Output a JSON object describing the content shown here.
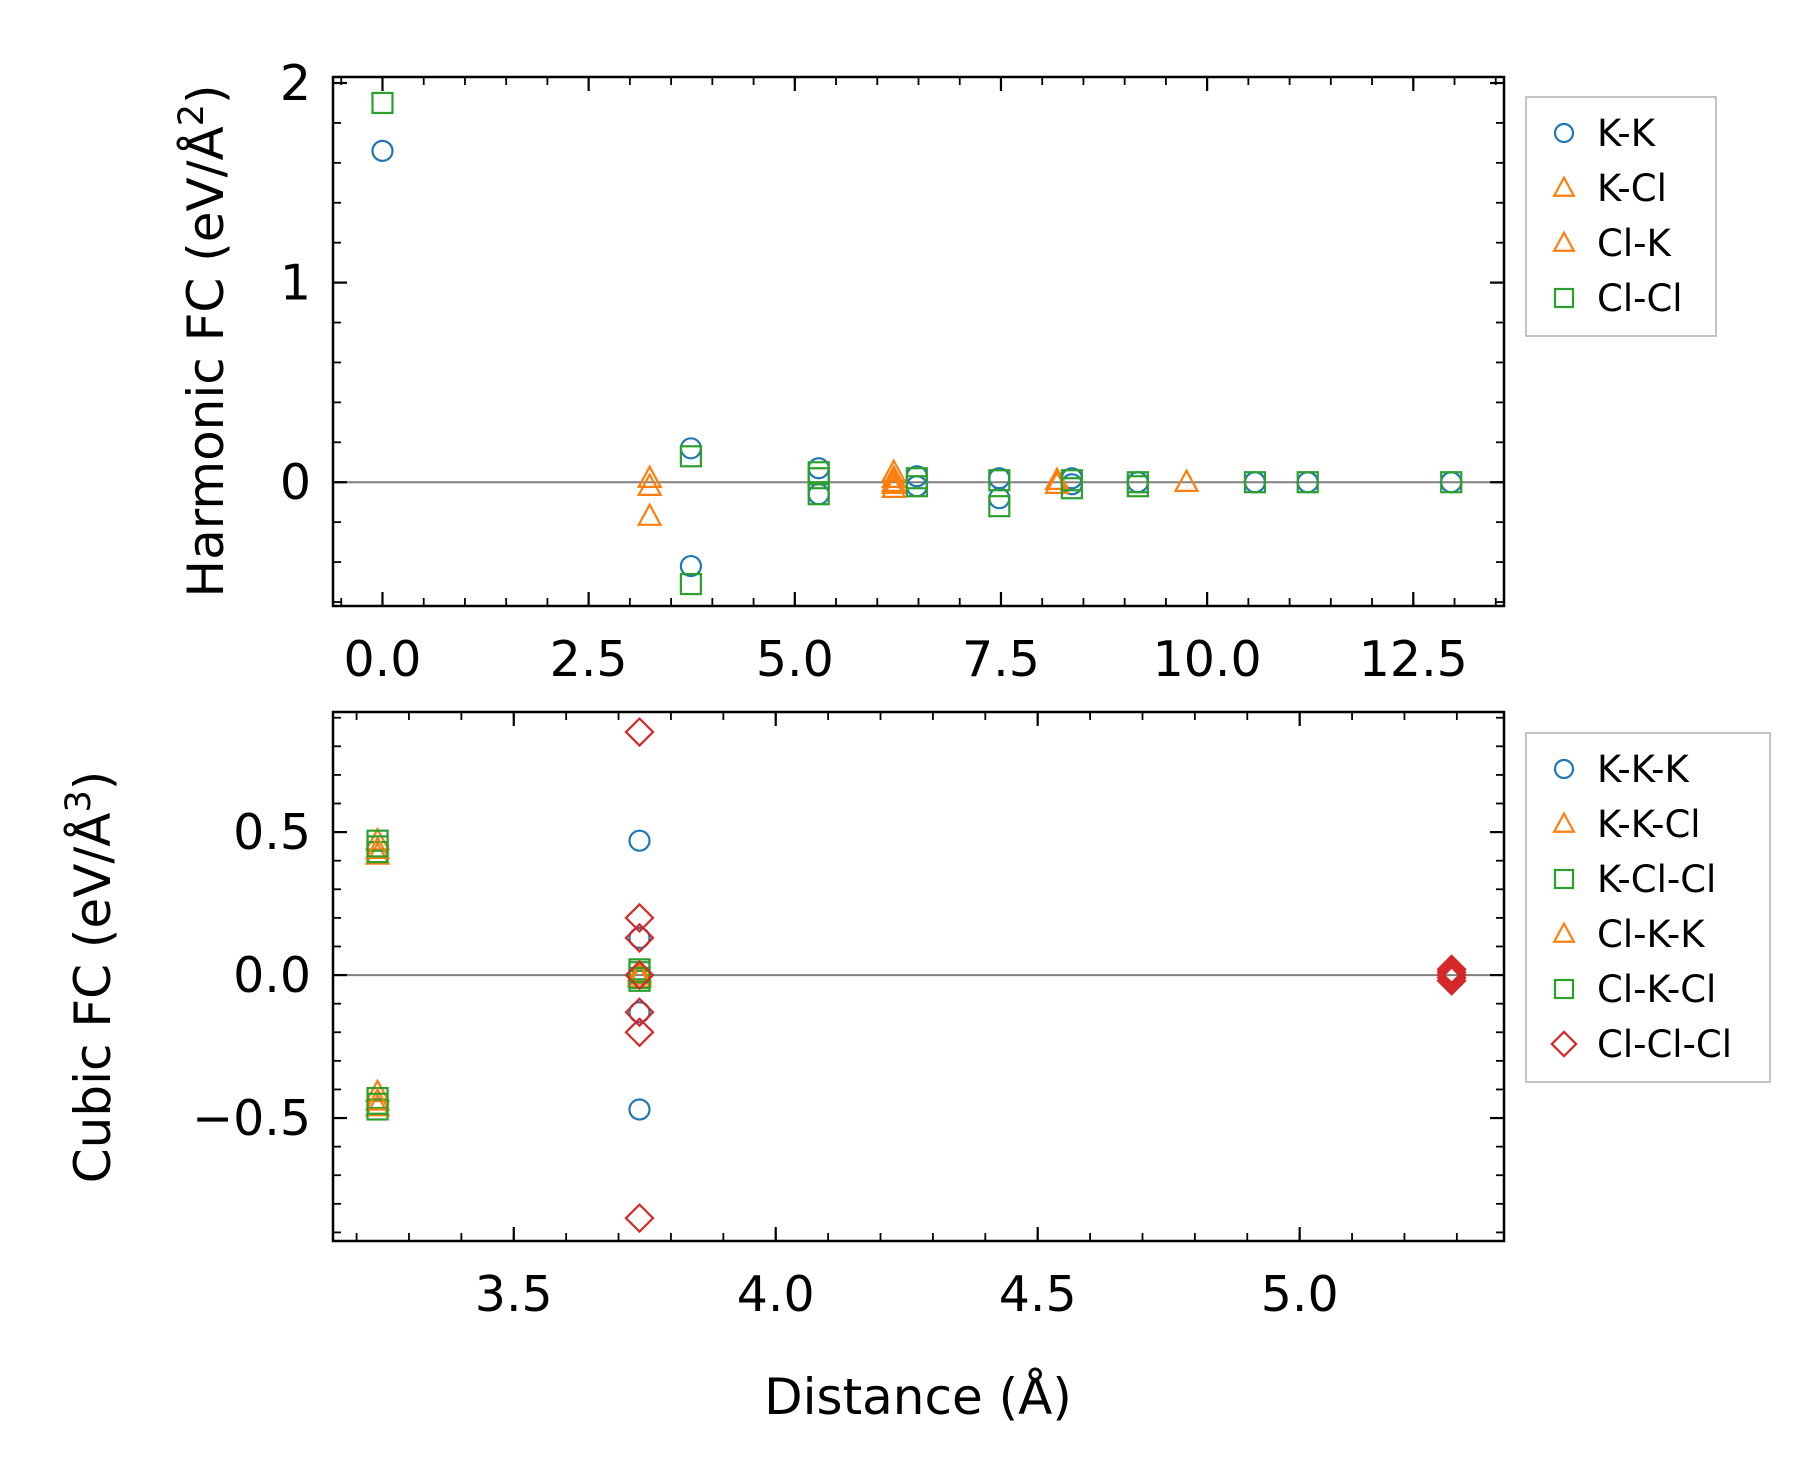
{
  "colors": {
    "blue": "#1f77b4",
    "orange": "#ff7f0e",
    "green": "#2ca02c",
    "red": "#d62728",
    "zero_line": "#808080"
  },
  "xlabel": "Distance (Å)",
  "chart_data": [
    {
      "type": "scatter",
      "ylabel_main": "Harmonic FC (eV/Å",
      "ylabel_sup": "2",
      "ylabel_close": ")",
      "xlim": [
        -0.6,
        13.6
      ],
      "ylim": [
        -0.62,
        2.03
      ],
      "xticks": [
        0,
        2.5,
        5,
        7.5,
        10,
        12.5
      ],
      "xtick_labels": [
        "0.0",
        "2.5",
        "5.0",
        "7.5",
        "10.0",
        "12.5"
      ],
      "yticks": [
        0,
        1,
        2
      ],
      "ytick_labels": [
        "0",
        "1",
        "2"
      ],
      "zero_line": 0,
      "series": [
        {
          "name": "K-K",
          "marker": "circle",
          "color": "#1f77b4",
          "x": [
            0,
            3.74,
            3.74,
            5.29,
            5.29,
            6.48,
            6.48,
            7.48,
            7.48,
            8.36,
            8.36,
            9.16,
            10.58,
            11.22,
            12.96
          ],
          "y": [
            1.66,
            0.17,
            -0.42,
            0.07,
            -0.06,
            0.03,
            -0.02,
            0.02,
            -0.08,
            0.02,
            -0.01,
            0.0,
            0.0,
            0.0,
            0.0
          ]
        },
        {
          "name": "K-Cl",
          "marker": "triangle",
          "color": "#ff7f0e",
          "x": [
            3.24,
            3.24,
            6.2,
            6.2,
            8.18,
            9.75
          ],
          "y": [
            0.02,
            -0.02,
            0.05,
            -0.03,
            0.01,
            0.0
          ]
        },
        {
          "name": "Cl-K",
          "marker": "triangle",
          "color": "#ff7f0e",
          "x": [
            3.24,
            6.2,
            6.2,
            6.2,
            8.18
          ],
          "y": [
            -0.17,
            0.02,
            -0.01,
            0.0,
            -0.01
          ]
        },
        {
          "name": "Cl-Cl",
          "marker": "square",
          "color": "#2ca02c",
          "x": [
            0,
            3.74,
            3.74,
            5.29,
            5.29,
            5.29,
            6.48,
            6.48,
            7.48,
            7.48,
            8.36,
            8.36,
            9.16,
            9.16,
            10.58,
            11.22,
            12.96
          ],
          "y": [
            1.9,
            0.13,
            -0.51,
            0.05,
            0.02,
            -0.06,
            0.02,
            -0.02,
            0.01,
            -0.12,
            0.01,
            -0.03,
            0.0,
            -0.02,
            0.0,
            0.0,
            0.0
          ]
        }
      ]
    },
    {
      "type": "scatter",
      "ylabel_main": "Cubic FC (eV/Å",
      "ylabel_sup": "3",
      "ylabel_close": ")",
      "xlim": [
        3.155,
        5.39
      ],
      "ylim": [
        -0.93,
        0.92
      ],
      "xticks": [
        3.5,
        4.0,
        4.5,
        5.0
      ],
      "xtick_labels": [
        "3.5",
        "4.0",
        "4.5",
        "5.0"
      ],
      "yticks": [
        0.5,
        0.0,
        -0.5
      ],
      "ytick_labels": [
        "0.5",
        "0.0",
        "−0.5"
      ],
      "zero_line": 0,
      "series": [
        {
          "name": "K-K-K",
          "marker": "circle",
          "color": "#1f77b4",
          "x": [
            3.74,
            3.74,
            3.74,
            3.74,
            5.29,
            5.29
          ],
          "y": [
            0.47,
            0.13,
            -0.13,
            -0.47,
            0.01,
            -0.01
          ]
        },
        {
          "name": "K-K-Cl",
          "marker": "triangle",
          "color": "#ff7f0e",
          "x": [
            3.24,
            3.24,
            3.24,
            3.24,
            3.74,
            3.74
          ],
          "y": [
            0.47,
            0.42,
            -0.41,
            -0.46,
            0.01,
            -0.01
          ]
        },
        {
          "name": "K-Cl-Cl",
          "marker": "square",
          "color": "#2ca02c",
          "x": [
            3.24,
            3.24,
            3.24,
            3.24,
            3.74,
            3.74
          ],
          "y": [
            0.47,
            0.43,
            -0.43,
            -0.47,
            0.02,
            -0.02
          ]
        },
        {
          "name": "Cl-K-K",
          "marker": "triangle",
          "color": "#ff7f0e",
          "x": [
            3.24,
            3.24,
            3.74
          ],
          "y": [
            0.44,
            -0.44,
            0.0
          ]
        },
        {
          "name": "Cl-K-Cl",
          "marker": "square",
          "color": "#2ca02c",
          "x": [
            3.24,
            3.24,
            3.74,
            3.74
          ],
          "y": [
            0.45,
            -0.45,
            0.01,
            -0.01
          ]
        },
        {
          "name": "Cl-Cl-Cl",
          "marker": "diamond",
          "color": "#d62728",
          "x": [
            3.74,
            3.74,
            3.74,
            3.74,
            3.74,
            3.74,
            3.74,
            5.29,
            5.29,
            5.29,
            5.29,
            5.29
          ],
          "y": [
            0.85,
            0.2,
            0.13,
            -0.13,
            -0.2,
            -0.85,
            0.0,
            0.02,
            0.0,
            -0.02,
            0.01,
            -0.01
          ]
        }
      ]
    }
  ]
}
